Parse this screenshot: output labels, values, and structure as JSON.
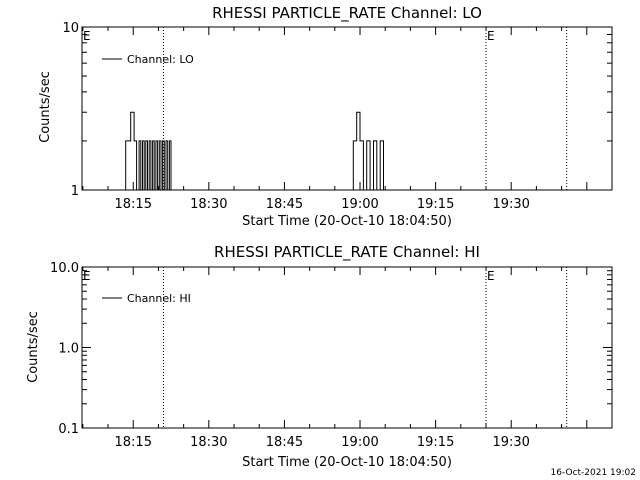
{
  "timestamp": "16-Oct-2021 19:02",
  "chart_data": [
    {
      "type": "line",
      "title": "RHESSI PARTICLE_RATE Channel: LO",
      "xlabel": "Start Time (20-Oct-10 18:04:50)",
      "ylabel": "Counts/sec",
      "yscale": "log",
      "ylim": [
        1,
        10
      ],
      "y_tick_labels": [
        "1",
        "10"
      ],
      "y_tick_values": [
        1,
        10
      ],
      "xlim": [
        "18:04:50",
        "19:50:00"
      ],
      "x_tick_labels": [
        "18:15",
        "18:30",
        "18:45",
        "19:00",
        "19:15",
        "19:30"
      ],
      "legend": {
        "entries": [
          "Channel: LO"
        ],
        "position": "top-left"
      },
      "event_markers": [
        {
          "label": "E",
          "time": "18:04:50"
        },
        {
          "label": "",
          "time": "18:21:00"
        },
        {
          "label": "E",
          "time": "19:25:00"
        },
        {
          "label": "",
          "time": "19:41:00"
        }
      ],
      "series": [
        {
          "name": "Channel: LO",
          "x": [
            "18:12:30",
            "18:13:30",
            "18:14:30",
            "18:15:10",
            "18:15:40",
            "18:16:10",
            "18:16:30",
            "18:16:50",
            "18:17:10",
            "18:17:30",
            "18:17:50",
            "18:18:10",
            "18:18:30",
            "18:18:50",
            "18:19:10",
            "18:19:30",
            "18:19:50",
            "18:20:10",
            "18:20:30",
            "18:20:50",
            "18:21:10",
            "18:21:30",
            "18:21:50",
            "18:22:10",
            "18:22:30",
            "18:22:50",
            "18:58:00",
            "18:58:40",
            "18:59:20",
            "19:00:00",
            "19:00:40",
            "19:01:20",
            "19:02:00",
            "19:02:40",
            "19:03:20",
            "19:04:00",
            "19:04:40",
            "19:05:20"
          ],
          "y": [
            1,
            2,
            3,
            2,
            1,
            2,
            1,
            2,
            1,
            2,
            1,
            2,
            1,
            2,
            1,
            2,
            1,
            2,
            1,
            2,
            1,
            2,
            1,
            2,
            1,
            1,
            1,
            2,
            3,
            2,
            1,
            2,
            1,
            2,
            1,
            2,
            1,
            1
          ]
        }
      ]
    },
    {
      "type": "line",
      "title": "RHESSI PARTICLE_RATE Channel: HI",
      "xlabel": "Start Time (20-Oct-10 18:04:50)",
      "ylabel": "Counts/sec",
      "yscale": "log",
      "ylim": [
        0.1,
        10
      ],
      "y_tick_labels": [
        "0.1",
        "1.0",
        "10.0"
      ],
      "y_tick_values": [
        0.1,
        1,
        10
      ],
      "xlim": [
        "18:04:50",
        "19:50:00"
      ],
      "x_tick_labels": [
        "18:15",
        "18:30",
        "18:45",
        "19:00",
        "19:15",
        "19:30"
      ],
      "legend": {
        "entries": [
          "Channel: HI"
        ],
        "position": "top-left"
      },
      "event_markers": [
        {
          "label": "E",
          "time": "18:04:50"
        },
        {
          "label": "",
          "time": "18:21:00"
        },
        {
          "label": "E",
          "time": "19:25:00"
        },
        {
          "label": "",
          "time": "19:41:00"
        }
      ],
      "series": [
        {
          "name": "Channel: HI",
          "x": [],
          "y": []
        }
      ]
    }
  ]
}
